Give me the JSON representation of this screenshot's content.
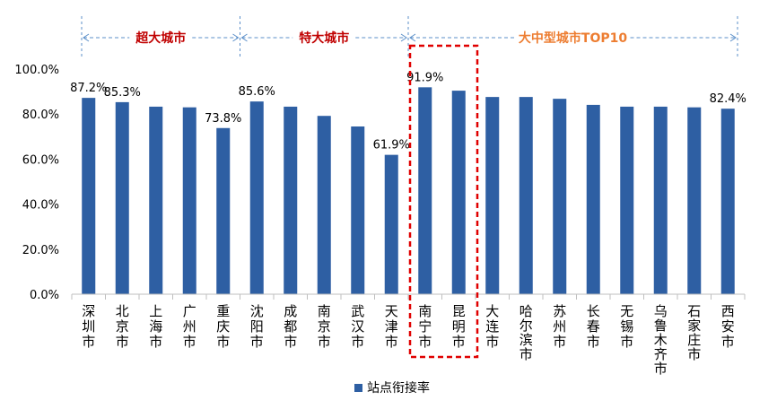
{
  "chart_data": {
    "type": "bar",
    "categories": [
      "深圳市",
      "北京市",
      "上海市",
      "广州市",
      "重庆市",
      "沈阳市",
      "成都市",
      "南京市",
      "武汉市",
      "天津市",
      "南宁市",
      "昆明市",
      "大连市",
      "哈尔滨市",
      "苏州市",
      "长春市",
      "无锡市",
      "乌鲁木齐市",
      "石家庄市",
      "西安市"
    ],
    "series": [
      {
        "name": "站点衔接率",
        "values": [
          87.2,
          85.3,
          83.3,
          83.0,
          73.8,
          85.6,
          83.3,
          79.2,
          74.5,
          61.9,
          91.9,
          90.4,
          87.6,
          87.6,
          86.8,
          84.1,
          83.3,
          83.3,
          83.0,
          82.4
        ],
        "data_labels": {
          "0": "87.2%",
          "1": "85.3%",
          "4": "73.8%",
          "5": "85.6%",
          "9": "61.9%",
          "10": "91.9%",
          "19": "82.4%"
        }
      }
    ],
    "ylim": [
      0,
      100
    ],
    "yticks": [
      "0.0%",
      "20.0%",
      "40.0%",
      "60.0%",
      "80.0%",
      "100.0%"
    ],
    "grid": false,
    "legend": "bottom",
    "groups": [
      {
        "label": "超大城市",
        "color": "#c00000"
      },
      {
        "label": "特大城市",
        "color": "#c00000"
      },
      {
        "label": "大中型城市TOP10",
        "color": "#ed7d31"
      }
    ],
    "highlight": {
      "categories": [
        "南宁市",
        "昆明市"
      ],
      "color": "#e00000",
      "style": "dashed-box"
    },
    "colors": {
      "bar": "#2e5fa3",
      "bracket": "#5b8fc9",
      "axis": "#bfbfbf"
    }
  }
}
